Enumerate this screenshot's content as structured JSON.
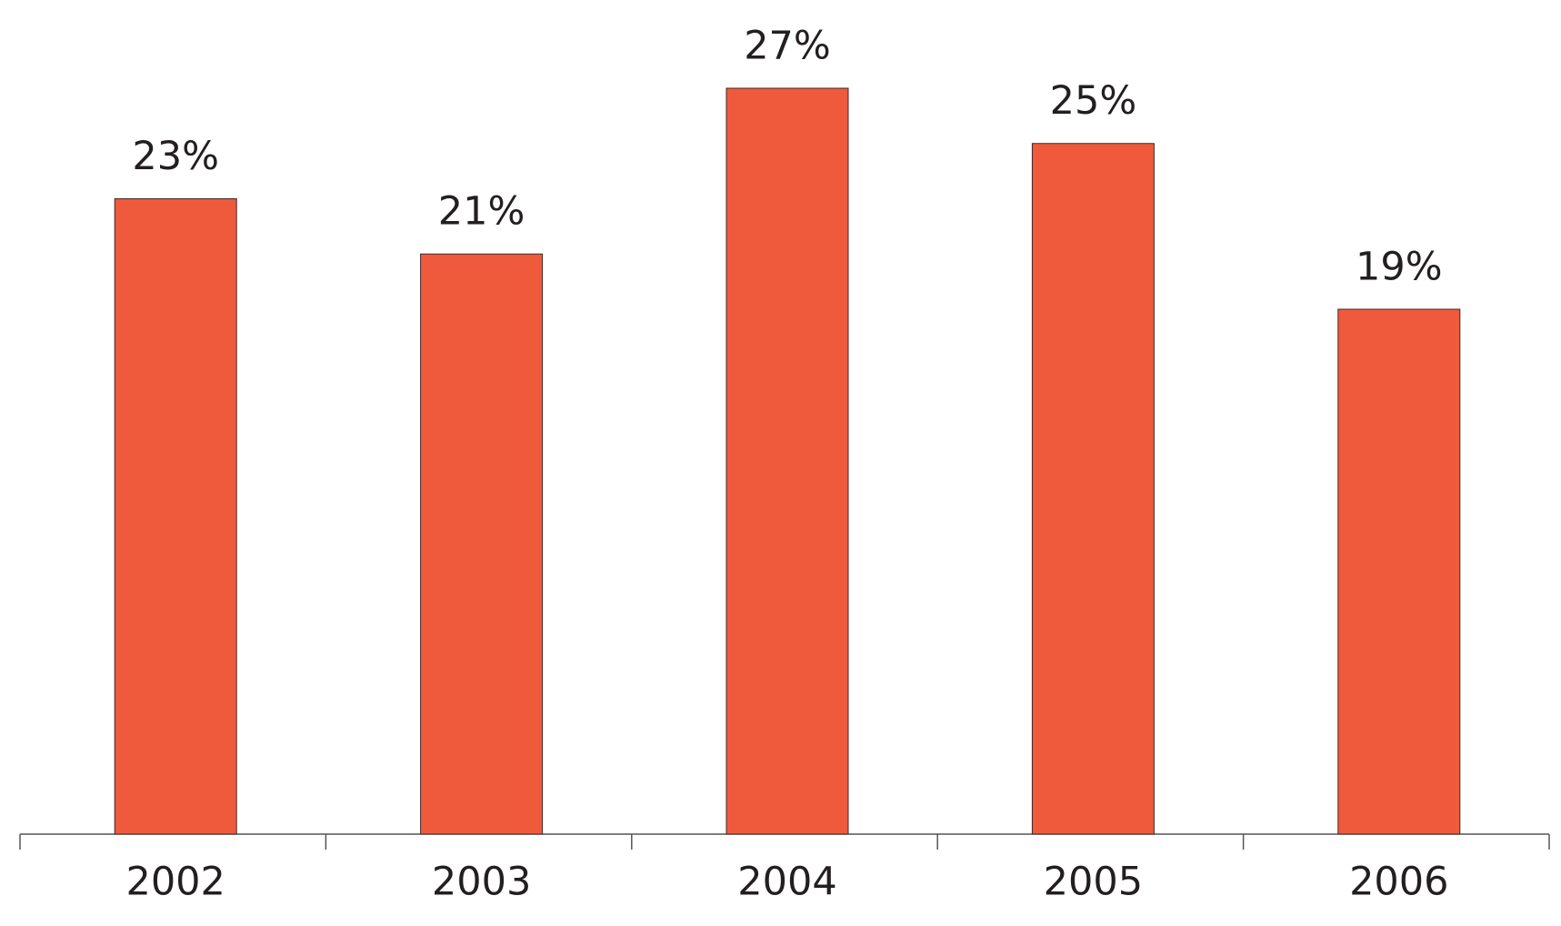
{
  "chart_data": {
    "type": "bar",
    "categories": [
      "2002",
      "2003",
      "2004",
      "2005",
      "2006"
    ],
    "values": [
      23,
      21,
      27,
      25,
      19
    ],
    "value_labels": [
      "23%",
      "21%",
      "27%",
      "25%",
      "19%"
    ],
    "color": "#f05a3c"
  }
}
